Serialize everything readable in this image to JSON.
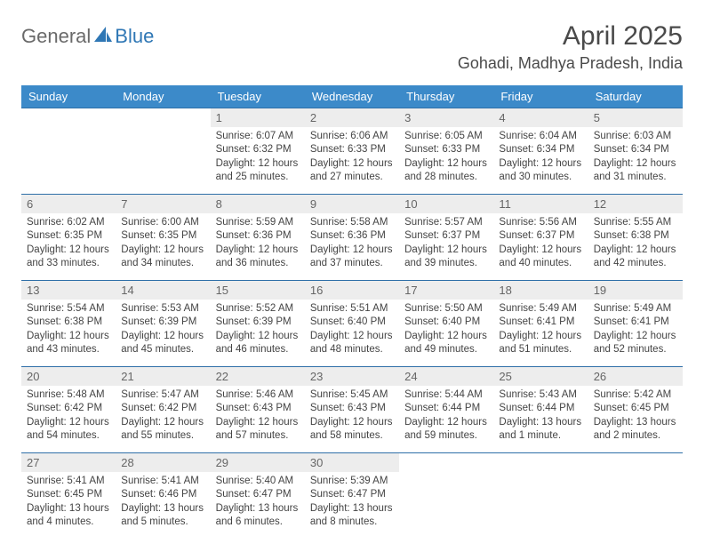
{
  "logo": {
    "part1": "General",
    "part2": "Blue"
  },
  "title": "April 2025",
  "location": "Gohadi, Madhya Pradesh, India",
  "colors": {
    "header_bg": "#3c8ac9",
    "header_text": "#ffffff",
    "daynum_bg": "#ededed",
    "daynum_text": "#666666",
    "detail_text": "#444444",
    "week_border": "#2f6fa8",
    "logo_gray": "#6a6a6a",
    "logo_blue": "#2f77b5",
    "page_bg": "#ffffff"
  },
  "typography": {
    "title_fontsize": 30,
    "location_fontsize": 18,
    "header_fontsize": 13,
    "daynum_fontsize": 13,
    "detail_fontsize": 11.5,
    "font_family": "Arial"
  },
  "layout": {
    "columns": 7,
    "rows": 5,
    "first_day_column": 2
  },
  "day_headers": [
    "Sunday",
    "Monday",
    "Tuesday",
    "Wednesday",
    "Thursday",
    "Friday",
    "Saturday"
  ],
  "weeks": [
    [
      null,
      null,
      {
        "n": "1",
        "sunrise": "Sunrise: 6:07 AM",
        "sunset": "Sunset: 6:32 PM",
        "daylight": "Daylight: 12 hours and 25 minutes."
      },
      {
        "n": "2",
        "sunrise": "Sunrise: 6:06 AM",
        "sunset": "Sunset: 6:33 PM",
        "daylight": "Daylight: 12 hours and 27 minutes."
      },
      {
        "n": "3",
        "sunrise": "Sunrise: 6:05 AM",
        "sunset": "Sunset: 6:33 PM",
        "daylight": "Daylight: 12 hours and 28 minutes."
      },
      {
        "n": "4",
        "sunrise": "Sunrise: 6:04 AM",
        "sunset": "Sunset: 6:34 PM",
        "daylight": "Daylight: 12 hours and 30 minutes."
      },
      {
        "n": "5",
        "sunrise": "Sunrise: 6:03 AM",
        "sunset": "Sunset: 6:34 PM",
        "daylight": "Daylight: 12 hours and 31 minutes."
      }
    ],
    [
      {
        "n": "6",
        "sunrise": "Sunrise: 6:02 AM",
        "sunset": "Sunset: 6:35 PM",
        "daylight": "Daylight: 12 hours and 33 minutes."
      },
      {
        "n": "7",
        "sunrise": "Sunrise: 6:00 AM",
        "sunset": "Sunset: 6:35 PM",
        "daylight": "Daylight: 12 hours and 34 minutes."
      },
      {
        "n": "8",
        "sunrise": "Sunrise: 5:59 AM",
        "sunset": "Sunset: 6:36 PM",
        "daylight": "Daylight: 12 hours and 36 minutes."
      },
      {
        "n": "9",
        "sunrise": "Sunrise: 5:58 AM",
        "sunset": "Sunset: 6:36 PM",
        "daylight": "Daylight: 12 hours and 37 minutes."
      },
      {
        "n": "10",
        "sunrise": "Sunrise: 5:57 AM",
        "sunset": "Sunset: 6:37 PM",
        "daylight": "Daylight: 12 hours and 39 minutes."
      },
      {
        "n": "11",
        "sunrise": "Sunrise: 5:56 AM",
        "sunset": "Sunset: 6:37 PM",
        "daylight": "Daylight: 12 hours and 40 minutes."
      },
      {
        "n": "12",
        "sunrise": "Sunrise: 5:55 AM",
        "sunset": "Sunset: 6:38 PM",
        "daylight": "Daylight: 12 hours and 42 minutes."
      }
    ],
    [
      {
        "n": "13",
        "sunrise": "Sunrise: 5:54 AM",
        "sunset": "Sunset: 6:38 PM",
        "daylight": "Daylight: 12 hours and 43 minutes."
      },
      {
        "n": "14",
        "sunrise": "Sunrise: 5:53 AM",
        "sunset": "Sunset: 6:39 PM",
        "daylight": "Daylight: 12 hours and 45 minutes."
      },
      {
        "n": "15",
        "sunrise": "Sunrise: 5:52 AM",
        "sunset": "Sunset: 6:39 PM",
        "daylight": "Daylight: 12 hours and 46 minutes."
      },
      {
        "n": "16",
        "sunrise": "Sunrise: 5:51 AM",
        "sunset": "Sunset: 6:40 PM",
        "daylight": "Daylight: 12 hours and 48 minutes."
      },
      {
        "n": "17",
        "sunrise": "Sunrise: 5:50 AM",
        "sunset": "Sunset: 6:40 PM",
        "daylight": "Daylight: 12 hours and 49 minutes."
      },
      {
        "n": "18",
        "sunrise": "Sunrise: 5:49 AM",
        "sunset": "Sunset: 6:41 PM",
        "daylight": "Daylight: 12 hours and 51 minutes."
      },
      {
        "n": "19",
        "sunrise": "Sunrise: 5:49 AM",
        "sunset": "Sunset: 6:41 PM",
        "daylight": "Daylight: 12 hours and 52 minutes."
      }
    ],
    [
      {
        "n": "20",
        "sunrise": "Sunrise: 5:48 AM",
        "sunset": "Sunset: 6:42 PM",
        "daylight": "Daylight: 12 hours and 54 minutes."
      },
      {
        "n": "21",
        "sunrise": "Sunrise: 5:47 AM",
        "sunset": "Sunset: 6:42 PM",
        "daylight": "Daylight: 12 hours and 55 minutes."
      },
      {
        "n": "22",
        "sunrise": "Sunrise: 5:46 AM",
        "sunset": "Sunset: 6:43 PM",
        "daylight": "Daylight: 12 hours and 57 minutes."
      },
      {
        "n": "23",
        "sunrise": "Sunrise: 5:45 AM",
        "sunset": "Sunset: 6:43 PM",
        "daylight": "Daylight: 12 hours and 58 minutes."
      },
      {
        "n": "24",
        "sunrise": "Sunrise: 5:44 AM",
        "sunset": "Sunset: 6:44 PM",
        "daylight": "Daylight: 12 hours and 59 minutes."
      },
      {
        "n": "25",
        "sunrise": "Sunrise: 5:43 AM",
        "sunset": "Sunset: 6:44 PM",
        "daylight": "Daylight: 13 hours and 1 minute."
      },
      {
        "n": "26",
        "sunrise": "Sunrise: 5:42 AM",
        "sunset": "Sunset: 6:45 PM",
        "daylight": "Daylight: 13 hours and 2 minutes."
      }
    ],
    [
      {
        "n": "27",
        "sunrise": "Sunrise: 5:41 AM",
        "sunset": "Sunset: 6:45 PM",
        "daylight": "Daylight: 13 hours and 4 minutes."
      },
      {
        "n": "28",
        "sunrise": "Sunrise: 5:41 AM",
        "sunset": "Sunset: 6:46 PM",
        "daylight": "Daylight: 13 hours and 5 minutes."
      },
      {
        "n": "29",
        "sunrise": "Sunrise: 5:40 AM",
        "sunset": "Sunset: 6:47 PM",
        "daylight": "Daylight: 13 hours and 6 minutes."
      },
      {
        "n": "30",
        "sunrise": "Sunrise: 5:39 AM",
        "sunset": "Sunset: 6:47 PM",
        "daylight": "Daylight: 13 hours and 8 minutes."
      },
      null,
      null,
      null
    ]
  ]
}
